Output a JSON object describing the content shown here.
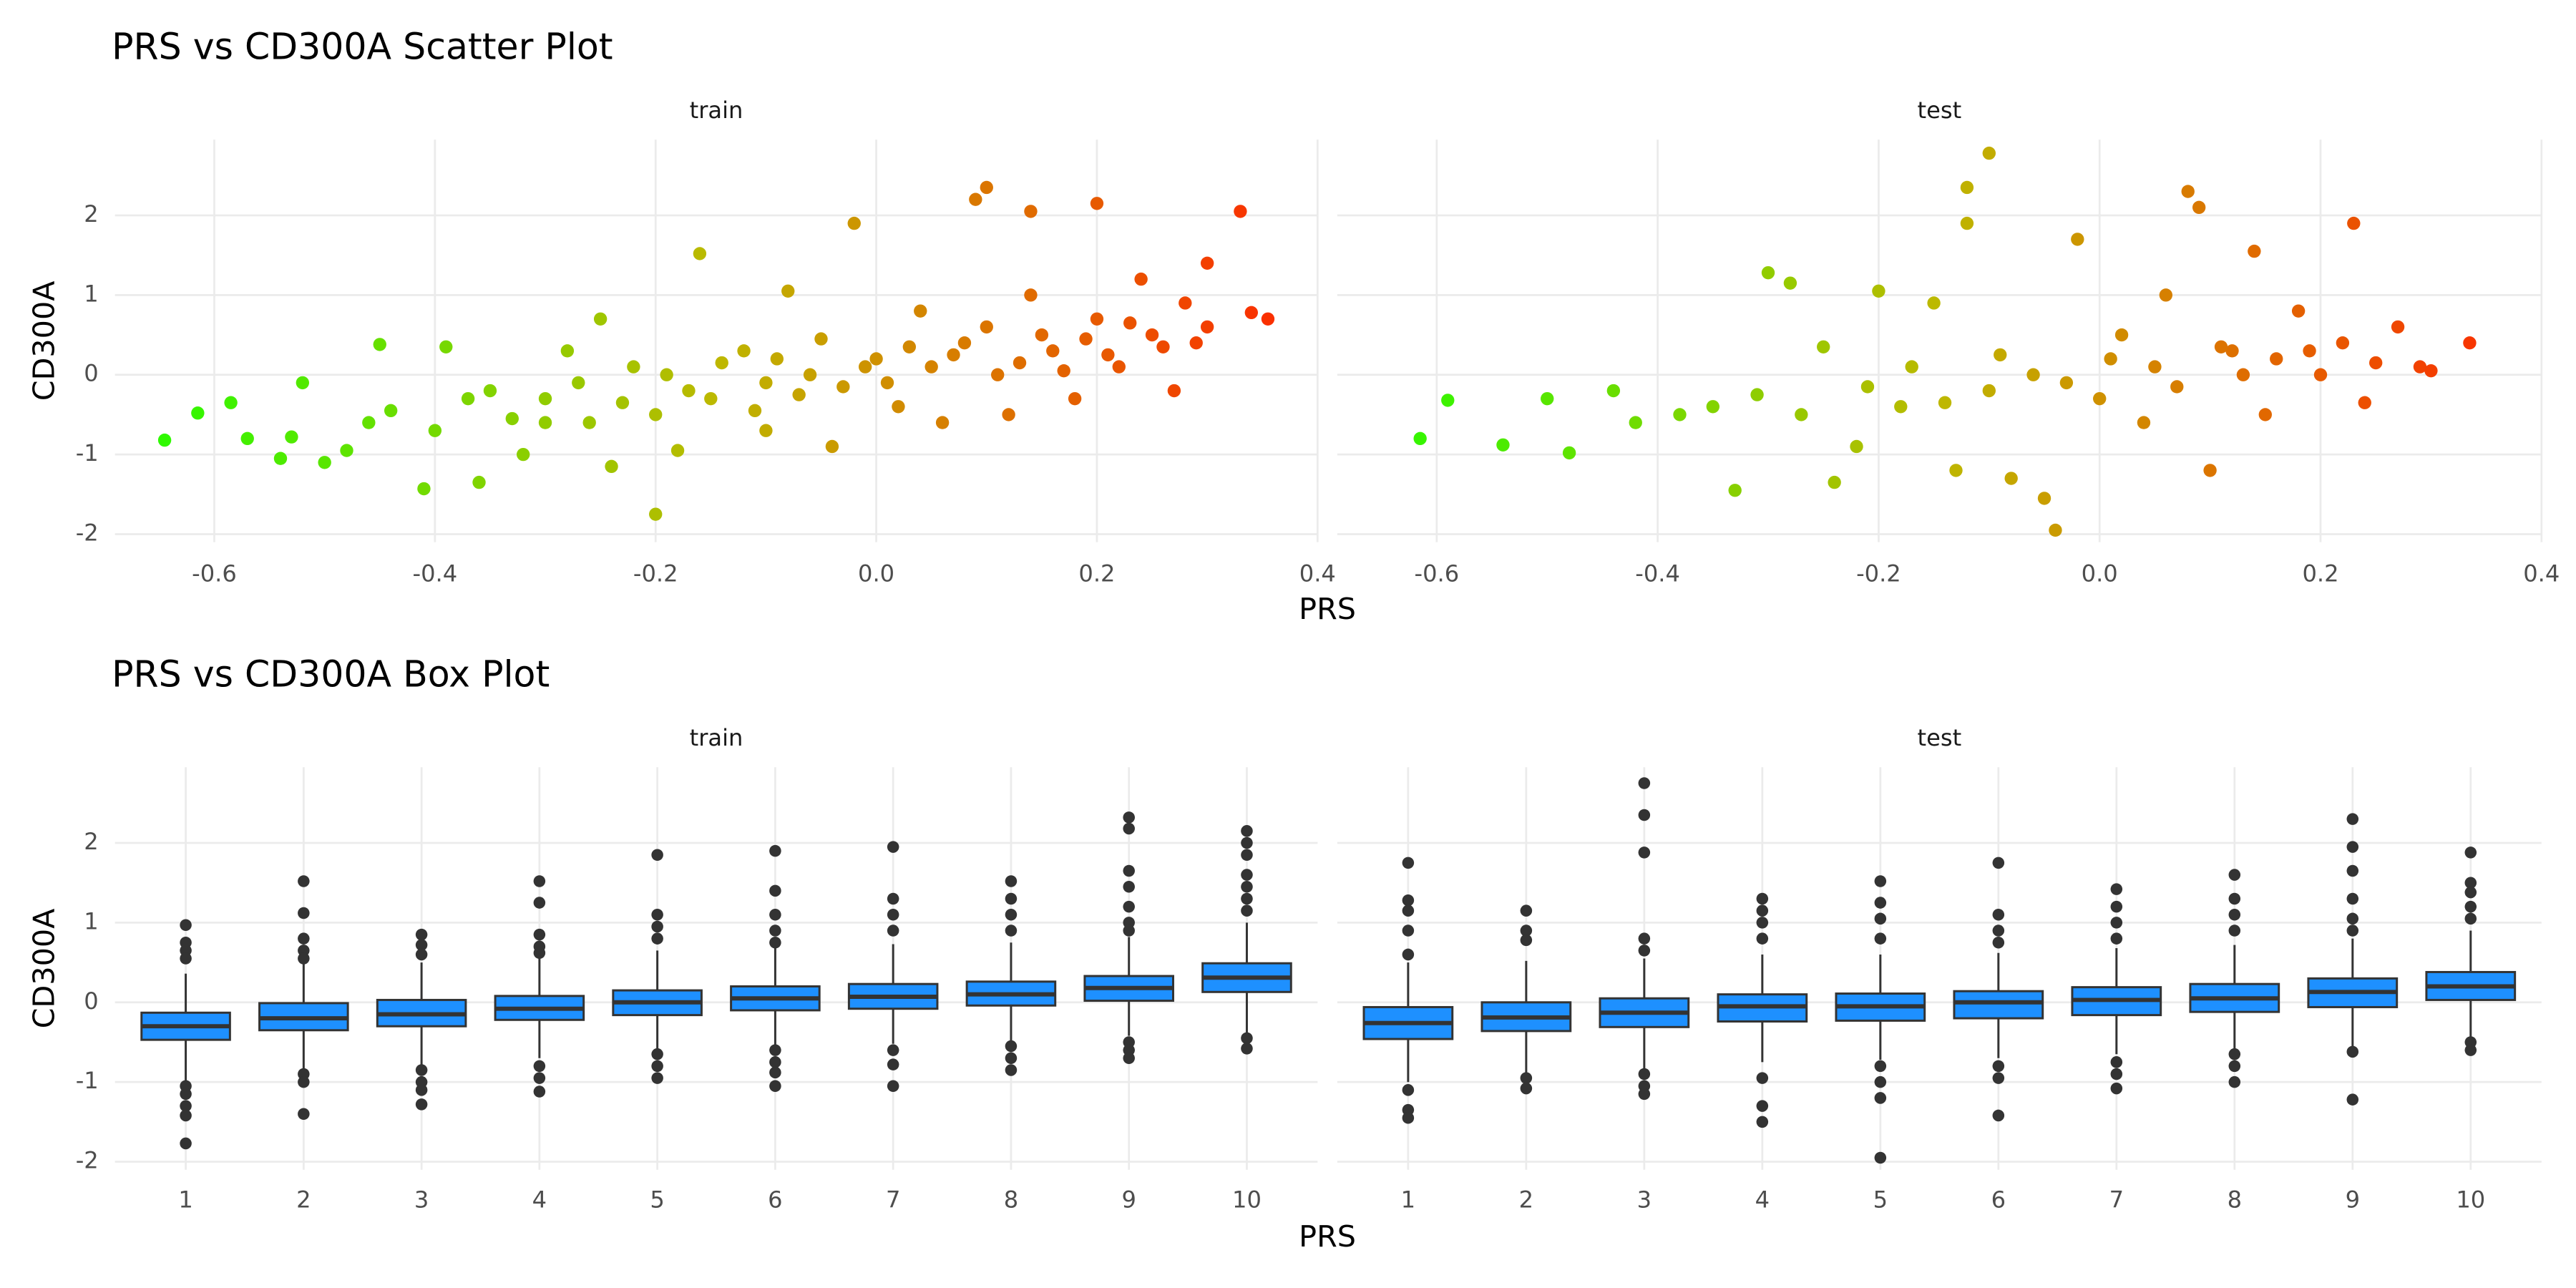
{
  "chart_data": [
    {
      "type": "scatter",
      "title": "PRS vs CD300A Scatter Plot",
      "xlabel": "PRS",
      "ylabel": "CD300A",
      "xlim": [
        -0.69,
        0.4
      ],
      "xticks": [
        -0.6,
        -0.4,
        -0.2,
        {
          "value": 0,
          "label": "0.0"
        },
        0.2,
        0.4
      ],
      "ylim": [
        -2.1,
        2.95
      ],
      "yticks": [
        -2,
        -1,
        0,
        1,
        2
      ],
      "grid": true,
      "color_gradient": [
        "#22ff00",
        "#bdb800",
        "#ff2400"
      ],
      "facets": [
        {
          "name": "train",
          "x": [
            -0.645,
            -0.615,
            -0.585,
            -0.57,
            -0.54,
            -0.53,
            -0.52,
            -0.5,
            -0.48,
            -0.46,
            -0.45,
            -0.41,
            -0.39,
            -0.36,
            -0.35,
            -0.32,
            -0.3,
            -0.28,
            -0.25,
            -0.24,
            -0.22,
            -0.2,
            -0.2,
            -0.18,
            -0.16,
            -0.15,
            -0.12,
            -0.1,
            -0.08,
            -0.06,
            -0.04,
            -0.02,
            0.0,
            0.02,
            0.04,
            0.06,
            0.08,
            0.09,
            0.1,
            0.11,
            0.12,
            0.14,
            0.14,
            0.16,
            0.18,
            0.2,
            0.2,
            0.22,
            0.24,
            0.25,
            0.27,
            0.28,
            0.3,
            0.3,
            0.33,
            0.34,
            0.355,
            -0.3,
            -0.1,
            0.05,
            -0.44,
            -0.4,
            -0.37,
            -0.33,
            -0.27,
            -0.26,
            -0.23,
            -0.19,
            -0.17,
            -0.14,
            -0.11,
            -0.09,
            -0.07,
            -0.05,
            -0.03,
            -0.01,
            0.01,
            0.03,
            0.07,
            0.1,
            0.13,
            0.15,
            0.17,
            0.19,
            0.21,
            0.23,
            0.26,
            0.29
          ],
          "y": [
            -0.82,
            -0.48,
            -0.35,
            -0.8,
            -1.05,
            -0.78,
            -0.1,
            -1.1,
            -0.95,
            -0.6,
            0.38,
            -1.43,
            0.35,
            -1.35,
            -0.2,
            -1.0,
            -0.6,
            0.3,
            0.7,
            -1.15,
            0.1,
            -0.5,
            -1.75,
            -0.95,
            1.52,
            -0.3,
            0.3,
            -0.7,
            1.05,
            0.0,
            -0.9,
            1.9,
            0.2,
            -0.4,
            0.8,
            -0.6,
            0.4,
            2.2,
            2.35,
            0.0,
            -0.5,
            1.0,
            2.05,
            0.3,
            -0.3,
            2.15,
            0.7,
            0.1,
            1.2,
            0.5,
            -0.2,
            0.9,
            1.4,
            0.6,
            2.05,
            0.78,
            0.7,
            -0.3,
            -0.1,
            0.1,
            -0.45,
            -0.7,
            -0.3,
            -0.55,
            -0.1,
            -0.6,
            -0.35,
            0.0,
            -0.2,
            0.15,
            -0.45,
            0.2,
            -0.25,
            0.45,
            -0.15,
            0.1,
            -0.1,
            0.35,
            0.25,
            0.6,
            0.15,
            0.5,
            0.05,
            0.45,
            0.25,
            0.65,
            0.35,
            0.4
          ]
        },
        {
          "name": "test",
          "x": [
            -0.615,
            -0.59,
            -0.54,
            -0.5,
            -0.48,
            -0.44,
            -0.42,
            -0.33,
            -0.3,
            -0.28,
            -0.25,
            -0.24,
            -0.22,
            -0.2,
            -0.18,
            -0.15,
            -0.13,
            -0.12,
            -0.12,
            -0.1,
            -0.08,
            -0.06,
            -0.05,
            -0.04,
            -0.02,
            0.0,
            0.02,
            0.04,
            0.06,
            0.08,
            0.09,
            0.1,
            0.12,
            0.14,
            0.15,
            0.18,
            0.2,
            0.22,
            0.23,
            0.24,
            0.27,
            0.29,
            0.3,
            0.335,
            -0.35,
            -0.1,
            0.05,
            0.16,
            -0.38,
            -0.31,
            -0.27,
            -0.21,
            -0.17,
            -0.14,
            -0.09,
            -0.03,
            0.01,
            0.07,
            0.11,
            0.13,
            0.19,
            0.25
          ],
          "y": [
            -0.8,
            -0.32,
            -0.88,
            -0.3,
            -0.98,
            -0.2,
            -0.6,
            -1.45,
            1.28,
            1.15,
            0.35,
            -1.35,
            -0.9,
            1.05,
            -0.4,
            0.9,
            -1.2,
            1.9,
            2.35,
            2.78,
            -1.3,
            0.0,
            -1.55,
            -1.95,
            1.7,
            -0.3,
            0.5,
            -0.6,
            1.0,
            2.3,
            2.1,
            -1.2,
            0.3,
            1.55,
            -0.5,
            0.8,
            0.0,
            0.4,
            1.9,
            -0.35,
            0.6,
            0.1,
            0.05,
            0.4,
            -0.4,
            -0.2,
            0.1,
            0.2,
            -0.5,
            -0.25,
            -0.5,
            -0.15,
            0.1,
            -0.35,
            0.25,
            -0.1,
            0.2,
            -0.15,
            0.35,
            0.0,
            0.3,
            0.15
          ]
        }
      ]
    },
    {
      "type": "box",
      "title": "PRS vs CD300A Box Plot",
      "xlabel": "PRS",
      "ylabel": "CD300A",
      "categories": [
        "1",
        "2",
        "3",
        "4",
        "5",
        "6",
        "7",
        "8",
        "9",
        "10"
      ],
      "ylim": [
        -2.1,
        2.95
      ],
      "yticks": [
        -2,
        -1,
        0,
        1,
        2
      ],
      "grid": true,
      "color": "#1e90ff",
      "facets": [
        {
          "name": "train",
          "boxes": [
            {
              "whislo": -0.98,
              "q1": -0.47,
              "median": -0.3,
              "q3": -0.13,
              "whishi": 0.36,
              "outliers": [
                0.97,
                0.75,
                0.65,
                0.55,
                -1.05,
                -1.15,
                -1.3,
                -1.42,
                -1.77
              ]
            },
            {
              "whislo": -0.85,
              "q1": -0.35,
              "median": -0.2,
              "q3": -0.01,
              "whishi": 0.48,
              "outliers": [
                1.52,
                1.12,
                0.8,
                0.65,
                0.55,
                -0.9,
                -1.0,
                -1.4
              ]
            },
            {
              "whislo": -0.78,
              "q1": -0.3,
              "median": -0.15,
              "q3": 0.03,
              "whishi": 0.5,
              "outliers": [
                0.85,
                0.72,
                0.6,
                -0.85,
                -1.0,
                -1.1,
                -1.28
              ]
            },
            {
              "whislo": -0.7,
              "q1": -0.22,
              "median": -0.08,
              "q3": 0.08,
              "whishi": 0.55,
              "outliers": [
                1.52,
                1.25,
                0.85,
                0.7,
                0.62,
                -0.8,
                -0.95,
                -1.12
              ]
            },
            {
              "whislo": -0.62,
              "q1": -0.16,
              "median": 0.0,
              "q3": 0.15,
              "whishi": 0.65,
              "outliers": [
                1.85,
                1.1,
                0.95,
                0.8,
                -0.65,
                -0.8,
                -0.95
              ]
            },
            {
              "whislo": -0.55,
              "q1": -0.1,
              "median": 0.05,
              "q3": 0.2,
              "whishi": 0.7,
              "outliers": [
                1.9,
                1.4,
                1.1,
                0.9,
                0.75,
                -0.6,
                -0.75,
                -0.88,
                -1.05
              ]
            },
            {
              "whislo": -0.52,
              "q1": -0.08,
              "median": 0.07,
              "q3": 0.23,
              "whishi": 0.73,
              "outliers": [
                1.95,
                1.3,
                1.1,
                0.9,
                -0.6,
                -0.78,
                -1.05
              ]
            },
            {
              "whislo": -0.5,
              "q1": -0.04,
              "median": 0.1,
              "q3": 0.26,
              "whishi": 0.75,
              "outliers": [
                1.52,
                1.3,
                1.1,
                0.9,
                -0.55,
                -0.7,
                -0.85
              ]
            },
            {
              "whislo": -0.42,
              "q1": 0.02,
              "median": 0.18,
              "q3": 0.33,
              "whishi": 0.82,
              "outliers": [
                2.32,
                2.18,
                1.65,
                1.45,
                1.2,
                1.0,
                0.9,
                -0.5,
                -0.6,
                -0.7
              ]
            },
            {
              "whislo": -0.38,
              "q1": 0.13,
              "median": 0.31,
              "q3": 0.49,
              "whishi": 1.0,
              "outliers": [
                2.15,
                2.0,
                1.85,
                1.6,
                1.45,
                1.3,
                1.15,
                -0.45,
                -0.58
              ]
            }
          ]
        },
        {
          "name": "test",
          "boxes": [
            {
              "whislo": -1.0,
              "q1": -0.46,
              "median": -0.26,
              "q3": -0.06,
              "whishi": 0.5,
              "outliers": [
                1.75,
                1.28,
                1.15,
                0.9,
                0.6,
                -1.1,
                -1.35,
                -1.45
              ]
            },
            {
              "whislo": -0.9,
              "q1": -0.36,
              "median": -0.19,
              "q3": 0.0,
              "whishi": 0.52,
              "outliers": [
                1.15,
                0.9,
                0.78,
                -0.95,
                -1.08
              ]
            },
            {
              "whislo": -0.85,
              "q1": -0.31,
              "median": -0.13,
              "q3": 0.05,
              "whishi": 0.55,
              "outliers": [
                2.75,
                2.35,
                1.88,
                0.8,
                0.65,
                -0.9,
                -1.05,
                -1.15
              ]
            },
            {
              "whislo": -0.75,
              "q1": -0.24,
              "median": -0.05,
              "q3": 0.1,
              "whishi": 0.6,
              "outliers": [
                1.3,
                1.15,
                1.0,
                0.8,
                -0.95,
                -1.3,
                -1.5
              ]
            },
            {
              "whislo": -0.72,
              "q1": -0.23,
              "median": -0.05,
              "q3": 0.11,
              "whishi": 0.6,
              "outliers": [
                1.52,
                1.25,
                1.05,
                0.8,
                -0.8,
                -1.0,
                -1.2,
                -1.95
              ]
            },
            {
              "whislo": -0.7,
              "q1": -0.2,
              "median": 0.0,
              "q3": 0.14,
              "whishi": 0.62,
              "outliers": [
                1.75,
                1.1,
                0.9,
                0.75,
                -0.8,
                -0.95,
                -1.42
              ]
            },
            {
              "whislo": -0.65,
              "q1": -0.16,
              "median": 0.03,
              "q3": 0.19,
              "whishi": 0.68,
              "outliers": [
                1.42,
                1.2,
                1.0,
                0.8,
                -0.75,
                -0.9,
                -1.08
              ]
            },
            {
              "whislo": -0.6,
              "q1": -0.12,
              "median": 0.05,
              "q3": 0.23,
              "whishi": 0.72,
              "outliers": [
                1.6,
                1.3,
                1.1,
                0.9,
                -0.65,
                -0.8,
                -1.0
              ]
            },
            {
              "whislo": -0.55,
              "q1": -0.06,
              "median": 0.13,
              "q3": 0.3,
              "whishi": 0.8,
              "outliers": [
                2.3,
                1.95,
                1.65,
                1.3,
                1.05,
                0.9,
                -0.62,
                -1.22
              ]
            },
            {
              "whislo": -0.48,
              "q1": 0.03,
              "median": 0.2,
              "q3": 0.38,
              "whishi": 0.9,
              "outliers": [
                1.88,
                1.5,
                1.38,
                1.2,
                1.05,
                -0.5,
                -0.6
              ]
            }
          ]
        }
      ]
    }
  ]
}
